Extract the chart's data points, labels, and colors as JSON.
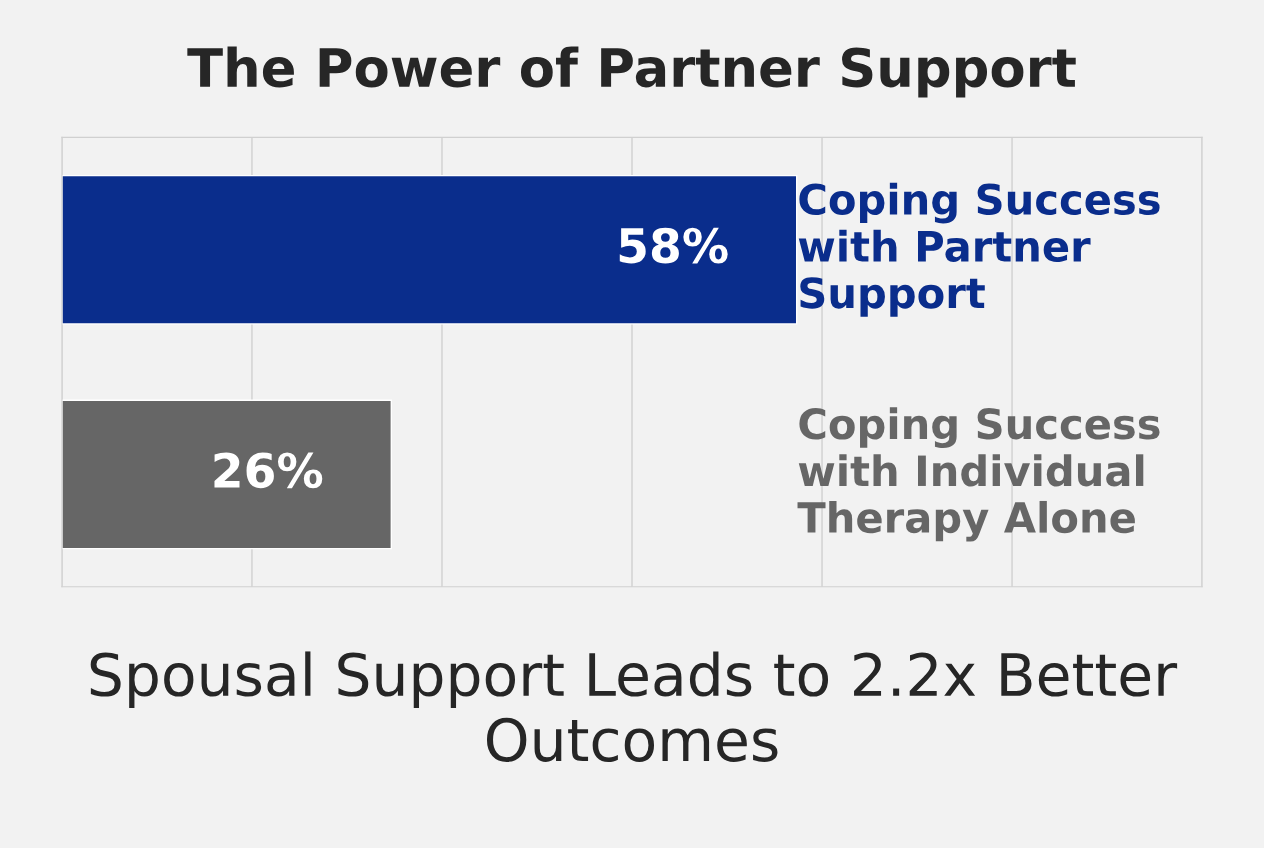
{
  "chart_data": {
    "type": "bar",
    "orientation": "horizontal",
    "title": "The Power of Partner Support",
    "subtitle": "Spousal Support Leads to 2.2x Better Outcomes",
    "categories": [
      "Coping Success with Partner Support",
      "Coping Success with Individual Therapy Alone"
    ],
    "values": [
      58,
      26
    ],
    "colors": [
      "#0a2d8c",
      "#666666"
    ],
    "value_labels": [
      "58%",
      "26%"
    ],
    "xlim": [
      0,
      90
    ],
    "xticks": [
      {
        "value": 0,
        "label": null
      },
      {
        "value": 15,
        "label": null
      },
      {
        "value": 30,
        "label": null
      },
      {
        "value": 45,
        "label": null
      },
      {
        "value": 60,
        "label": null
      },
      {
        "value": 75,
        "label": null
      },
      {
        "value": 90,
        "label": null
      }
    ],
    "grid": "x"
  }
}
